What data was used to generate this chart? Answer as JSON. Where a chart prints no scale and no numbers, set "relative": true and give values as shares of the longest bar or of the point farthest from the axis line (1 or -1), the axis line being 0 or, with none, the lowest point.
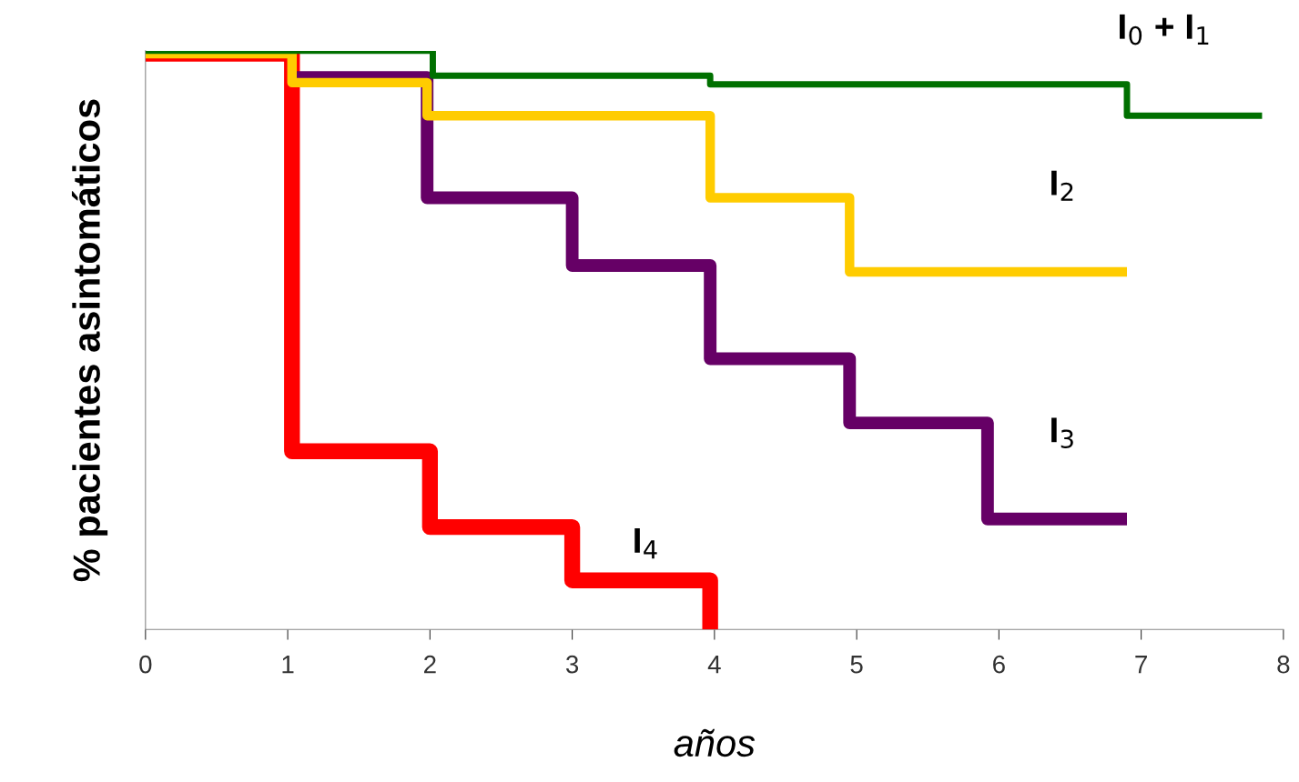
{
  "chart_data": {
    "type": "step",
    "relative": true,
    "xlabel": "años",
    "ylabel": "% pacientes asintomáticos",
    "xlim": [
      0,
      8
    ],
    "xticks": [
      0,
      1,
      2,
      3,
      4,
      5,
      6,
      7,
      8
    ],
    "grid": false,
    "legend": false,
    "line_style": "solid",
    "marker": "none",
    "series": [
      {
        "name": "I$_{0}$ + I$_{1}$",
        "color": "#007000",
        "x": [
          0,
          2.02,
          3.97,
          6.9,
          7.85
        ],
        "values": [
          1.0,
          0.957,
          0.942,
          0.888,
          0.888
        ]
      },
      {
        "name": "I$_{2}$",
        "color": "#ffcc00",
        "x": [
          0,
          1.03,
          1.98,
          3.97,
          4.95,
          6.9
        ],
        "values": [
          0.995,
          0.945,
          0.888,
          0.746,
          0.618,
          0.618
        ]
      },
      {
        "name": "I$_{3}$",
        "color": "#660066",
        "x": [
          1.03,
          1.98,
          3.0,
          3.97,
          4.95,
          5.92,
          6.9
        ],
        "values": [
          0.954,
          0.746,
          0.629,
          0.468,
          0.357,
          0.191,
          0.191
        ]
      },
      {
        "name": "I$_{4}$",
        "color": "#ff0000",
        "x": [
          0,
          1.03,
          2.0,
          3.0,
          3.97,
          3.97
        ],
        "values": [
          0.995,
          0.308,
          0.177,
          0.085,
          0.0,
          0.0
        ]
      }
    ]
  }
}
